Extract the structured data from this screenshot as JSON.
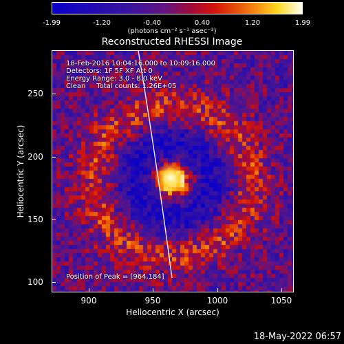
{
  "colorbar": {
    "tick_labels": [
      "-1.99",
      "-1.20",
      "-0.40",
      "0.40",
      "1.20",
      "1.99"
    ],
    "unit_label": "(photons cm⁻² s⁻¹ asec⁻²)"
  },
  "title": "Reconstructed RHESSI Image",
  "info": {
    "line1": "18-Feb-2016 10:04:16.000 to 10:09:16.000",
    "line2": "Detectors: 1F 5F XF Att 0",
    "line3": "Energy Range: 3.0 - 8.0 keV",
    "line4": "Clean     Total counts: 1.26E+05",
    "peak": "Position of Peak = [964,184]"
  },
  "axes": {
    "x_label": "Heliocentric X (arcsec)",
    "y_label": "Heliocentric Y (arcsec)",
    "x_ticks": [
      "900",
      "950",
      "1000",
      "1050"
    ],
    "y_ticks": [
      "250",
      "200",
      "150",
      "100"
    ]
  },
  "footer": "18-May-2022 06:57",
  "colors": {
    "background": "#000000",
    "text": "#ffffff"
  }
}
